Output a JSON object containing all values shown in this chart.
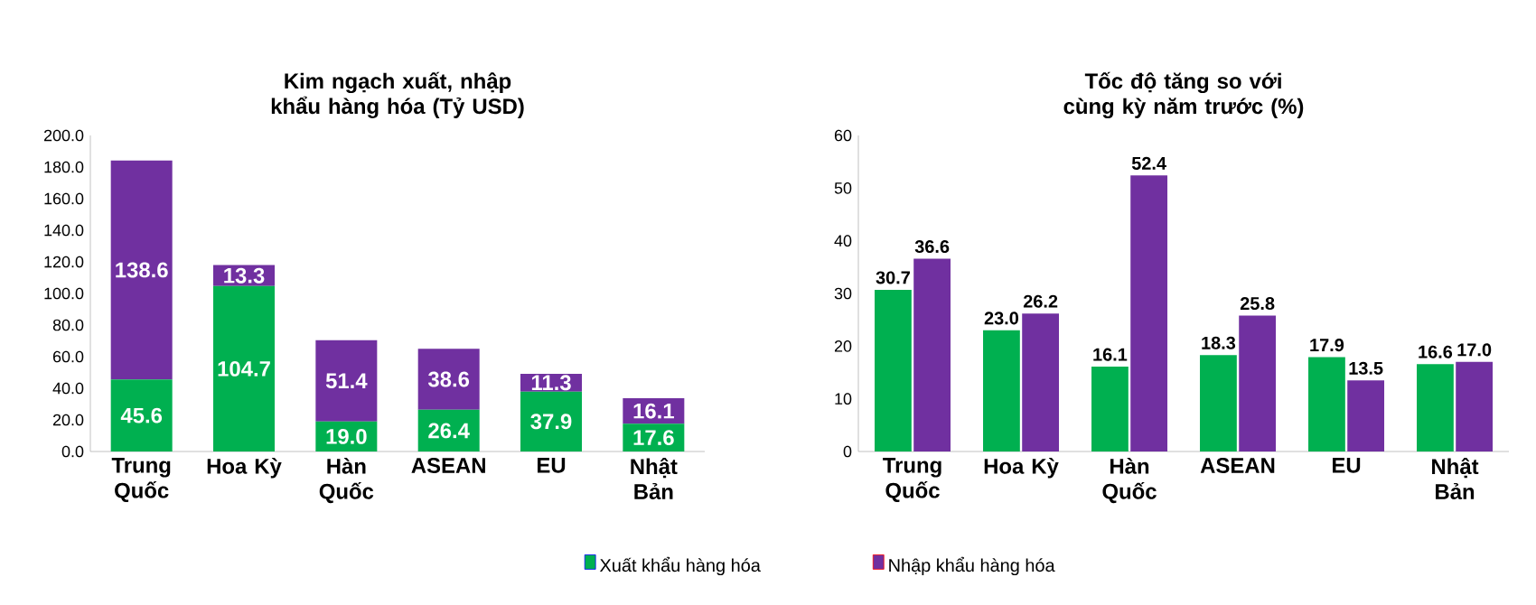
{
  "chart_data": [
    {
      "type": "bar",
      "title": "Kim ngạch xuất, nhập khẩu hàng hóa (Tỷ USD)",
      "stacked": true,
      "legend": "bottom",
      "categories": [
        "Trung Quốc",
        "Hoa Kỳ",
        "Hàn Quốc",
        "ASEAN",
        "EU",
        "Nhật Bản"
      ],
      "series": [
        {
          "name": "Xuất khẩu hàng hóa",
          "color": "#00b050",
          "values": [
            45.6,
            104.7,
            19.0,
            26.4,
            37.9,
            17.6
          ],
          "value_labels": [
            "45.6",
            "104.7",
            "19.0",
            "26.4",
            "37.9",
            "17.6"
          ]
        },
        {
          "name": "Nhập khẩu hàng hóa",
          "color": "#7030a0",
          "values": [
            138.6,
            13.3,
            51.4,
            38.6,
            11.3,
            16.1
          ],
          "value_labels": [
            "138.6",
            "13.3",
            "51.4",
            "38.6",
            "11.3",
            "16.1"
          ]
        }
      ],
      "ylim": [
        0,
        200
      ],
      "yticks": [
        {
          "value": 0,
          "label": "0.0"
        },
        {
          "value": 20,
          "label": "20.0"
        },
        {
          "value": 40,
          "label": "40.0"
        },
        {
          "value": 60,
          "label": "60.0"
        },
        {
          "value": 80,
          "label": "80.0"
        },
        {
          "value": 100,
          "label": "100.0"
        },
        {
          "value": 120,
          "label": "120.0"
        },
        {
          "value": 140,
          "label": "140.0"
        },
        {
          "value": 160,
          "label": "160.0"
        },
        {
          "value": 180,
          "label": "180.0"
        },
        {
          "value": 200,
          "label": "200.0"
        }
      ]
    },
    {
      "type": "bar",
      "title": "Tốc độ tăng so với cùng kỳ năm trước (%)",
      "categories": [
        "Trung Quốc",
        "Hoa Kỳ",
        "Hàn Quốc",
        "ASEAN",
        "EU",
        "Nhật Bản"
      ],
      "series": [
        {
          "color": "#00b050",
          "values": [
            30.7,
            23.0,
            16.1,
            18.3,
            17.9,
            16.6
          ],
          "value_labels": [
            "30.7",
            "23.0",
            "16.1",
            "18.3",
            "17.9",
            "16.6"
          ]
        },
        {
          "color": "#7030a0",
          "values": [
            36.6,
            26.2,
            52.4,
            25.8,
            13.5,
            17.0
          ],
          "value_labels": [
            "36.6",
            "26.2",
            "52.4",
            "25.8",
            "13.5",
            "17.0"
          ]
        }
      ],
      "ylim": [
        0,
        60
      ],
      "yticks": [
        0,
        10,
        20,
        30,
        40,
        50,
        60
      ]
    }
  ]
}
